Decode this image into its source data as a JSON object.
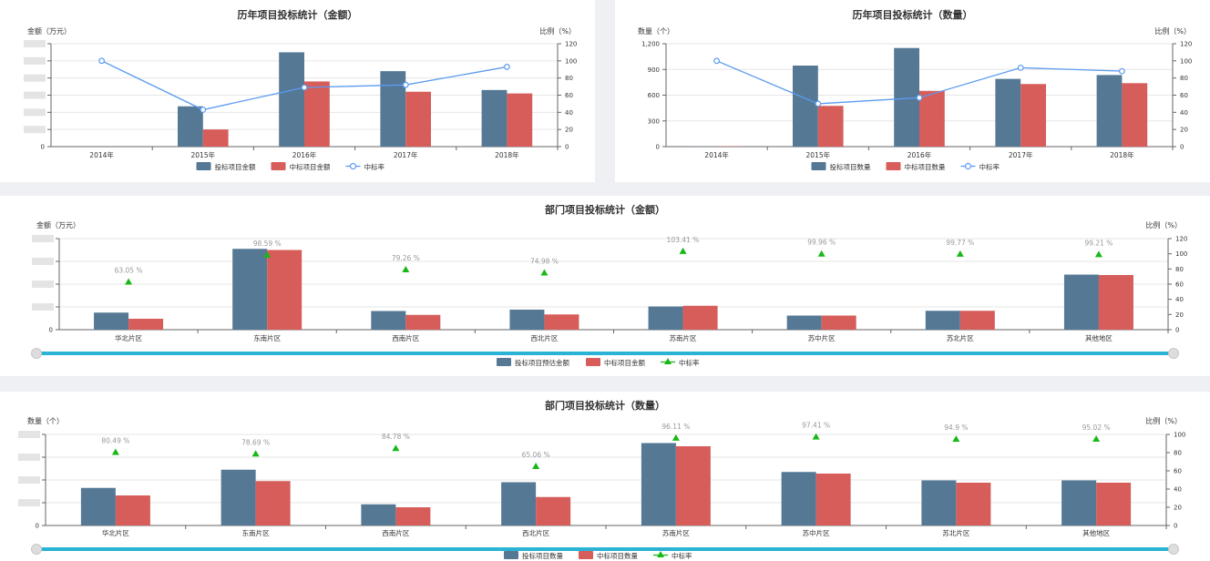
{
  "colors": {
    "bid": "#557895",
    "win": "#d65d5a",
    "rate_line": "#5b9bf0",
    "rate_marker": "#18b818",
    "slider": "#2bb3d6",
    "grid": "#e6e6e6",
    "axis": "#666666"
  },
  "chart_data": [
    {
      "id": "yearly-amount",
      "type": "bar",
      "title": "历年项目投标统计（金额）",
      "ylabel": "金额（万元）",
      "y2label": "比例（%）",
      "categories": [
        "2014年",
        "2015年",
        "2016年",
        "2017年",
        "2018年"
      ],
      "y_hidden": true,
      "ylim": [
        0,
        6
      ],
      "yticks": [
        0,
        1,
        2,
        3,
        4,
        5,
        6
      ],
      "y2lim": [
        0,
        120
      ],
      "y2ticks": [
        0,
        20,
        40,
        60,
        80,
        100,
        120
      ],
      "series": [
        {
          "name": "投标项目金额",
          "kind": "bar",
          "color_key": "bid",
          "values": [
            0,
            2.35,
            5.5,
            4.4,
            3.3
          ]
        },
        {
          "name": "中标项目金额",
          "kind": "bar",
          "color_key": "win",
          "values": [
            0,
            1.0,
            3.8,
            3.2,
            3.1
          ]
        },
        {
          "name": "中标率",
          "kind": "line",
          "marker": "circle",
          "axis": "right",
          "values": [
            100,
            43,
            69,
            72,
            93
          ]
        }
      ],
      "point_labels": [],
      "legend": "bottom-center",
      "grid": true,
      "slider": false
    },
    {
      "id": "yearly-count",
      "type": "bar",
      "title": "历年项目投标统计（数量）",
      "ylabel": "数量（个）",
      "y2label": "比例（%）",
      "categories": [
        "2014年",
        "2015年",
        "2016年",
        "2017年",
        "2018年"
      ],
      "y_hidden": false,
      "ylim": [
        0,
        1200
      ],
      "yticks": [
        0,
        300,
        600,
        900,
        1200
      ],
      "ytick_labels": [
        "0",
        "300",
        "600",
        "900",
        "1,200"
      ],
      "y2lim": [
        0,
        120
      ],
      "y2ticks": [
        0,
        20,
        40,
        60,
        80,
        100,
        120
      ],
      "series": [
        {
          "name": "投标项目数量",
          "kind": "bar",
          "color_key": "bid",
          "values": [
            3,
            945,
            1150,
            790,
            835
          ]
        },
        {
          "name": "中标项目数量",
          "kind": "bar",
          "color_key": "win",
          "values": [
            3,
            475,
            650,
            730,
            740
          ]
        },
        {
          "name": "中标率",
          "kind": "line",
          "marker": "circle",
          "axis": "right",
          "values": [
            100,
            50,
            57,
            92,
            88
          ]
        }
      ],
      "point_labels": [],
      "legend": "bottom-center",
      "grid": true,
      "slider": false
    },
    {
      "id": "dept-amount",
      "type": "bar",
      "title": "部门项目投标统计（金额）",
      "ylabel": "金额（万元）",
      "y2label": "比例（%）",
      "categories": [
        "华北片区",
        "东南片区",
        "西南片区",
        "西北片区",
        "苏南片区",
        "苏中片区",
        "苏北片区",
        "其他地区"
      ],
      "y_hidden": true,
      "ylim": [
        0,
        4
      ],
      "yticks": [
        0,
        1,
        2,
        3,
        4
      ],
      "y2lim": [
        0,
        120
      ],
      "y2ticks": [
        0,
        20,
        40,
        60,
        80,
        100,
        120
      ],
      "series": [
        {
          "name": "投标项目预估金额",
          "kind": "bar",
          "color_key": "bid",
          "values": [
            0.75,
            3.55,
            0.82,
            0.88,
            1.02,
            0.62,
            0.83,
            2.42
          ]
        },
        {
          "name": "中标项目金额",
          "kind": "bar",
          "color_key": "win",
          "values": [
            0.48,
            3.5,
            0.65,
            0.67,
            1.05,
            0.62,
            0.83,
            2.4
          ]
        },
        {
          "name": "中标率",
          "kind": "scatter",
          "marker": "triangle",
          "axis": "right",
          "values": [
            63.05,
            98.59,
            79.26,
            74.98,
            103.41,
            99.96,
            99.77,
            99.21
          ]
        }
      ],
      "point_labels": [
        "63.05 %",
        "98.59 %",
        "79.26 %",
        "74.98 %",
        "103.41 %",
        "99.96 %",
        "99.77 %",
        "99.21 %"
      ],
      "legend": "bottom-center",
      "grid": true,
      "slider": true
    },
    {
      "id": "dept-count",
      "type": "bar",
      "title": "部门项目投标统计（数量）",
      "ylabel": "数量（个）",
      "y2label": "比例（%）",
      "categories": [
        "华北片区",
        "东南片区",
        "西南片区",
        "西北片区",
        "苏南片区",
        "苏中片区",
        "苏北片区",
        "其他地区"
      ],
      "y_hidden": true,
      "ylim": [
        0,
        4
      ],
      "yticks": [
        0,
        1,
        2,
        3,
        4
      ],
      "y2lim": [
        0,
        100
      ],
      "y2ticks": [
        0,
        20,
        40,
        60,
        80,
        100
      ],
      "series": [
        {
          "name": "投标项目数量",
          "kind": "bar",
          "color_key": "bid",
          "values": [
            1.65,
            2.45,
            0.93,
            1.9,
            3.62,
            2.35,
            1.98,
            1.98
          ]
        },
        {
          "name": "中标项目数量",
          "kind": "bar",
          "color_key": "win",
          "values": [
            1.32,
            1.95,
            0.8,
            1.25,
            3.48,
            2.28,
            1.88,
            1.88
          ]
        },
        {
          "name": "中标率",
          "kind": "scatter",
          "marker": "triangle",
          "axis": "right",
          "values": [
            80.49,
            78.69,
            84.78,
            65.06,
            96.11,
            97.41,
            94.9,
            95.02
          ]
        }
      ],
      "point_labels": [
        "80.49 %",
        "78.69 %",
        "84.78 %",
        "65.06 %",
        "96.11 %",
        "97.41 %",
        "94.9 %",
        "95.02 %"
      ],
      "legend": "bottom-center",
      "grid": true,
      "slider": true
    }
  ]
}
